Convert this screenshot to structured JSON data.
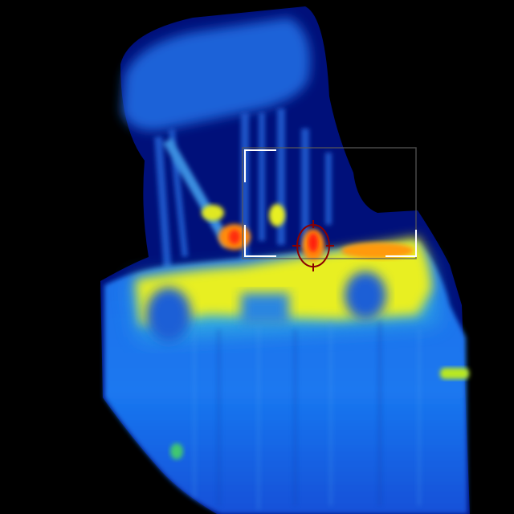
{
  "image": {
    "kind": "thermal-camera-frame",
    "palette": [
      "#000000",
      "#00106e",
      "#0a3fd0",
      "#1e7df0",
      "#40c8e8",
      "#e8ef20",
      "#ff8a10",
      "#ff1a10"
    ],
    "description_colors": {
      "background": "#000000",
      "cool": "#0a3fd0",
      "warm": "#e8ef20",
      "hot": "#ff1a10"
    }
  },
  "overlay": {
    "reticle_color": "#8b0000",
    "bracket_color": "#ffffff",
    "roi_border_color": "#5a5a5a",
    "icons": [
      "crosshair-reticle-icon",
      "focus-bracket-icon"
    ]
  }
}
